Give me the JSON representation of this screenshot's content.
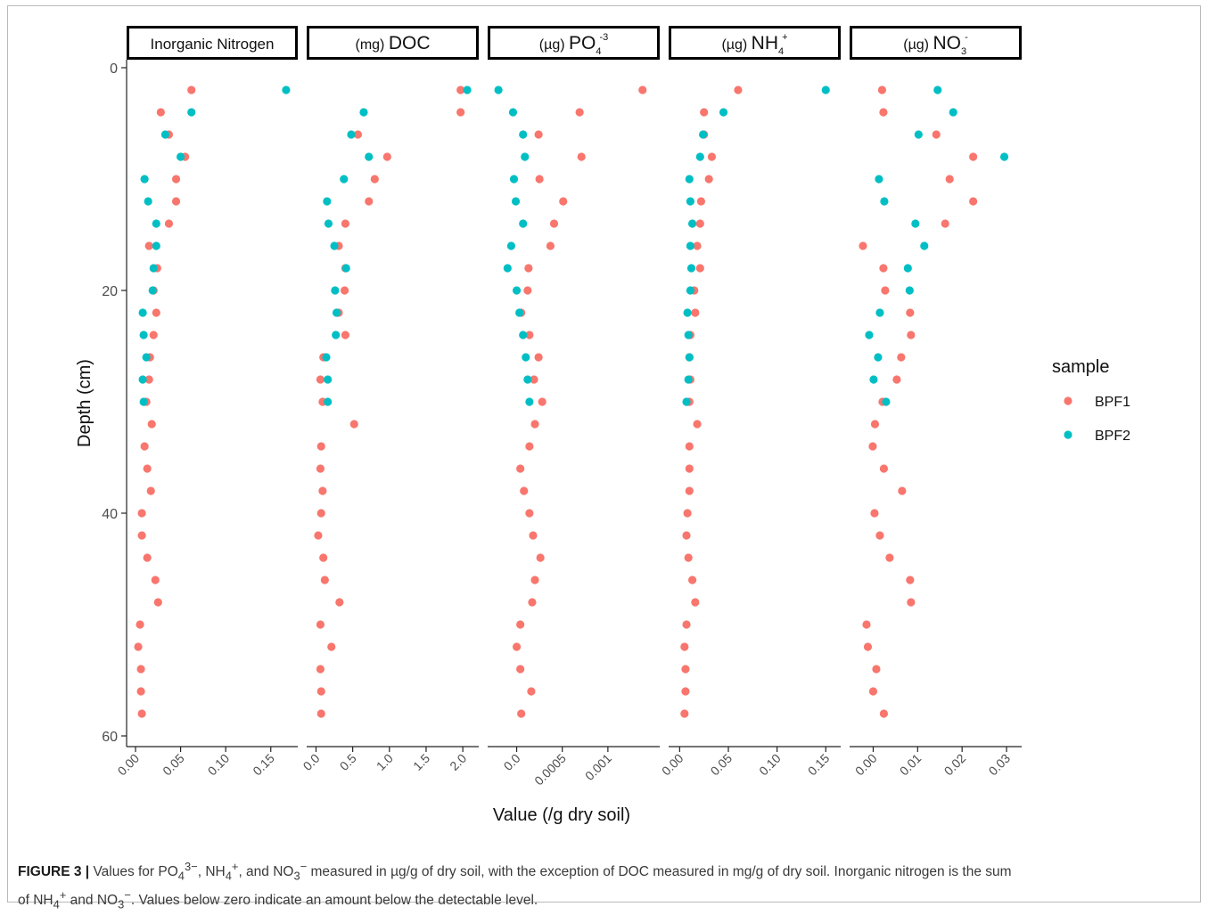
{
  "chart_data": {
    "type": "scatter",
    "ylabel": "Depth (cm)",
    "xlabel": "Value (/g dry soil)",
    "ylim": [
      0,
      60
    ],
    "y_reversed": true,
    "y_ticks": [
      "0",
      "20",
      "40",
      "60"
    ],
    "y_tick_values": [
      0,
      20,
      40,
      60
    ],
    "legend": {
      "title": "sample",
      "position": "right",
      "entries": [
        {
          "name": "BPF1",
          "color": "#F8766D"
        },
        {
          "name": "BPF2",
          "color": "#00BFC4"
        }
      ]
    },
    "grid": false,
    "depths": [
      2,
      4,
      6,
      8,
      10,
      12,
      14,
      16,
      18,
      20,
      22,
      24,
      26,
      28,
      30,
      32,
      34,
      36,
      38,
      40,
      42,
      44,
      46,
      48,
      50,
      52,
      54,
      56,
      58
    ],
    "panels": [
      {
        "title_prefix": "",
        "title_main": "Inorganic Nitrogen",
        "title_sup": "",
        "title_sub": "",
        "xlim": [
          -0.002,
          0.172
        ],
        "x_ticks": [
          "0.00",
          "0.05",
          "0.10",
          "0.15"
        ],
        "x_tick_values": [
          0,
          0.05,
          0.1,
          0.15
        ],
        "series": [
          {
            "name": "BPF1",
            "values": [
              0.062,
              0.028,
              0.037,
              0.055,
              0.045,
              0.045,
              0.037,
              0.015,
              0.024,
              0.02,
              0.023,
              0.02,
              0.016,
              0.015,
              0.012,
              0.018,
              0.01,
              0.013,
              0.017,
              0.007,
              0.007,
              0.013,
              0.022,
              0.025,
              0.005,
              0.003,
              0.006,
              0.006,
              0.007
            ]
          },
          {
            "name": "BPF2",
            "values": [
              0.167,
              0.062,
              0.033,
              0.05,
              0.01,
              0.014,
              0.023,
              0.023,
              0.02,
              0.019,
              0.008,
              0.009,
              0.012,
              0.008,
              0.009,
              null,
              null,
              null,
              null,
              null,
              null,
              null,
              null,
              null,
              null,
              null,
              null,
              null,
              null
            ]
          }
        ]
      },
      {
        "title_prefix": "(mg)",
        "title_main": "DOC",
        "title_sup": "",
        "title_sub": "",
        "xlim": [
          -0.03,
          2.12
        ],
        "x_ticks": [
          "0.0",
          "0.5",
          "1.0",
          "1.5",
          "2.0"
        ],
        "x_tick_values": [
          0,
          0.5,
          1.0,
          1.5,
          2.0
        ],
        "series": [
          {
            "name": "BPF1",
            "values": [
              1.97,
              1.97,
              0.57,
              0.97,
              0.8,
              0.72,
              0.4,
              0.31,
              0.4,
              0.39,
              0.31,
              0.4,
              0.1,
              0.06,
              0.09,
              0.52,
              0.07,
              0.06,
              0.09,
              0.07,
              0.03,
              0.1,
              0.12,
              0.32,
              0.06,
              0.21,
              0.06,
              0.07,
              0.07
            ]
          },
          {
            "name": "BPF2",
            "values": [
              2.06,
              0.65,
              0.48,
              0.72,
              0.38,
              0.15,
              0.17,
              0.25,
              0.41,
              0.26,
              0.28,
              0.27,
              0.14,
              0.16,
              0.16,
              null,
              null,
              null,
              null,
              null,
              null,
              null,
              null,
              null,
              null,
              null,
              null,
              null,
              null
            ]
          }
        ]
      },
      {
        "title_prefix": "(µg)",
        "title_main": "PO",
        "title_sup": "-3",
        "title_sub": "4",
        "xlim": [
          -0.00024,
          0.00149
        ],
        "x_ticks": [
          "0.0",
          "0.0005",
          "0.001"
        ],
        "x_tick_values": [
          0,
          0.0005,
          0.001
        ],
        "series": [
          {
            "name": "BPF1",
            "values": [
              0.00138,
              0.00069,
              0.00024,
              0.00071,
              0.00025,
              0.00051,
              0.00041,
              0.00037,
              0.00013,
              0.00012,
              5e-05,
              0.00014,
              0.00024,
              0.00019,
              0.00028,
              0.0002,
              0.00014,
              4e-05,
              8e-05,
              0.00014,
              0.00018,
              0.00026,
              0.0002,
              0.00017,
              4e-05,
              0.0,
              4e-05,
              0.00016,
              5e-05
            ]
          },
          {
            "name": "BPF2",
            "values": [
              -0.0002,
              -4e-05,
              7e-05,
              9e-05,
              -3e-05,
              -1e-05,
              7e-05,
              -6e-05,
              -0.0001,
              0.0,
              3e-05,
              7e-05,
              0.0001,
              0.00012,
              0.00014,
              null,
              null,
              null,
              null,
              null,
              null,
              null,
              null,
              null,
              null,
              null,
              null,
              null,
              null
            ]
          }
        ]
      },
      {
        "title_prefix": "(µg)",
        "title_main": "NH",
        "title_sup": "+",
        "title_sub": "4",
        "xlim": [
          -0.004,
          0.158
        ],
        "x_ticks": [
          "0.00",
          "0.05",
          "0.10",
          "0.15"
        ],
        "x_tick_values": [
          0,
          0.05,
          0.1,
          0.15
        ],
        "series": [
          {
            "name": "BPF1",
            "values": [
              0.06,
              0.025,
              0.025,
              0.033,
              0.03,
              0.022,
              0.021,
              0.018,
              0.021,
              0.015,
              0.016,
              0.011,
              0.01,
              0.011,
              0.01,
              0.018,
              0.01,
              0.01,
              0.01,
              0.008,
              0.007,
              0.009,
              0.013,
              0.016,
              0.007,
              0.005,
              0.006,
              0.006,
              0.005
            ]
          },
          {
            "name": "BPF2",
            "values": [
              0.15,
              0.045,
              0.024,
              0.021,
              0.01,
              0.011,
              0.013,
              0.011,
              0.012,
              0.011,
              0.008,
              0.009,
              0.01,
              0.009,
              0.007,
              null,
              null,
              null,
              null,
              null,
              null,
              null,
              null,
              null,
              null,
              null,
              null,
              null,
              null
            ]
          }
        ]
      },
      {
        "title_prefix": "(µg)",
        "title_main": "NO",
        "title_sup": "-",
        "title_sub": "3",
        "xlim": [
          -0.0037,
          0.0318
        ],
        "x_ticks": [
          "0.00",
          "0.01",
          "0.02",
          "0.03"
        ],
        "x_tick_values": [
          0,
          0.01,
          0.02,
          0.03
        ],
        "series": [
          {
            "name": "BPF1",
            "values": [
              0.002,
              0.0023,
              0.0142,
              0.0225,
              0.0172,
              0.0225,
              0.0162,
              -0.0023,
              0.0023,
              0.0027,
              0.0083,
              0.0085,
              0.0063,
              0.0053,
              0.0021,
              0.0004,
              -0.0001,
              0.0024,
              0.0065,
              0.0003,
              0.0015,
              0.0037,
              0.0083,
              0.0085,
              -0.0015,
              -0.0012,
              0.0007,
              0.0,
              0.0024
            ]
          },
          {
            "name": "BPF2",
            "values": [
              0.0145,
              0.018,
              0.0102,
              0.0295,
              0.0013,
              0.0025,
              0.0095,
              0.0115,
              0.0078,
              0.0082,
              0.0015,
              -0.0009,
              0.0011,
              0.0001,
              0.0029,
              null,
              null,
              null,
              null,
              null,
              null,
              null,
              null,
              null,
              null,
              null,
              null,
              null,
              null
            ]
          }
        ]
      }
    ]
  },
  "caption": {
    "label": "FIGURE 3 |",
    "line1_a": " Values for PO",
    "line1_b": "4",
    "line1_c": "3−",
    "line1_d": ", NH",
    "line1_e": "4",
    "line1_f": "+",
    "line1_g": ", and NO",
    "line1_h": "3",
    "line1_i": "−",
    "line1_j": " measured in µg/g of dry soil, with the exception of DOC measured in mg/g of dry soil. Inorganic nitrogen is the sum",
    "line2_a": "of NH",
    "line2_b": "4",
    "line2_c": "+",
    "line2_d": " and NO",
    "line2_e": "3",
    "line2_f": "−",
    "line2_g": ". Values below zero indicate an amount below the detectable level."
  }
}
